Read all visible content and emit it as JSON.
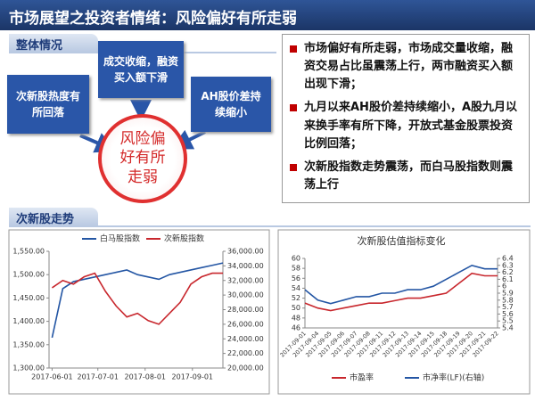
{
  "title": "市场展望之投资者情绪：风险偏好有所走弱",
  "overview": {
    "heading": "整体情况",
    "boxes": [
      "次新股热度有所回落",
      "成交收缩，融资买入额下滑",
      "AH股价差持续缩小"
    ],
    "center": "风险偏好有所走弱"
  },
  "bullets": [
    "市场偏好有所走弱，市场成交量收缩，融资交易占比虽震荡上行，两市融资买入额出现下滑；",
    "九月以来AH股价差持续缩小，A股九月以来换手率有所下降，开放式基金股票投资比例回落；",
    "次新股指数走势震荡，而白马股指数则震荡上行"
  ],
  "trend_heading": "次新股走势",
  "chart_data": [
    {
      "type": "line",
      "x": [
        "2017-06-01",
        "2017-06-08",
        "2017-06-15",
        "2017-06-22",
        "2017-06-29",
        "2017-07-06",
        "2017-07-13",
        "2017-07-20",
        "2017-07-27",
        "2017-08-03",
        "2017-08-10",
        "2017-08-17",
        "2017-08-24",
        "2017-08-31",
        "2017-09-07",
        "2017-09-14",
        "2017-09-21"
      ],
      "xlim": [
        "2017-05-30",
        "2017-09-21"
      ],
      "xticks": [
        "2017-06-01",
        "2017-07-01",
        "2017-08-01",
        "2017-09-01"
      ],
      "ylim": [
        1300,
        1550
      ],
      "yticks": [
        {
          "value": 1300,
          "label": "1,300.00"
        },
        {
          "value": 1350,
          "label": "1,350.00"
        },
        {
          "value": 1400,
          "label": "1,400.00"
        },
        {
          "value": 1450,
          "label": "1,450.00"
        },
        {
          "value": 1500,
          "label": "1,500.00"
        },
        {
          "value": 1550,
          "label": "1,550.00"
        }
      ],
      "y2lim": [
        20000,
        36000
      ],
      "y2ticks": [
        {
          "value": 20000,
          "label": "20,000.00"
        },
        {
          "value": 22000,
          "label": "22,000.00"
        },
        {
          "value": 24000,
          "label": "24,000.00"
        },
        {
          "value": 26000,
          "label": "26,000.00"
        },
        {
          "value": 28000,
          "label": "28,000.00"
        },
        {
          "value": 30000,
          "label": "30,000.00"
        },
        {
          "value": 32000,
          "label": "32,000.00"
        },
        {
          "value": 34000,
          "label": "34,000.00"
        },
        {
          "value": 36000,
          "label": "36,000.00"
        }
      ],
      "series": [
        {
          "name": "白马股指数",
          "color": "#2456a4",
          "values": [
            1365,
            1470,
            1485,
            1490,
            1495,
            1500,
            1505,
            1510,
            1500,
            1495,
            1490,
            1500,
            1505,
            1510,
            1515,
            1520,
            1525
          ]
        },
        {
          "name": "次新股指数",
          "color": "#c8272d",
          "axis": "y2",
          "values": [
            31000,
            32000,
            31500,
            32500,
            33000,
            30500,
            28500,
            27000,
            27500,
            26500,
            26000,
            27500,
            29000,
            31500,
            32500,
            33000,
            33000
          ]
        }
      ],
      "legend": "top"
    },
    {
      "type": "line",
      "title": "次新股估值指标变化",
      "categories": [
        "2017-09-01",
        "2017-09-04",
        "2017-09-05",
        "2017-09-06",
        "2017-09-07",
        "2017-09-08",
        "2017-09-11",
        "2017-09-12",
        "2017-09-13",
        "2017-09-14",
        "2017-09-15",
        "2017-09-18",
        "2017-09-19",
        "2017-09-20",
        "2017-09-21",
        "2017-09-22"
      ],
      "ylim": [
        46,
        60
      ],
      "yticks": [
        46,
        48,
        50,
        52,
        54,
        56,
        58,
        60
      ],
      "y2lim": [
        5.4,
        6.4
      ],
      "y2ticks": [
        5.4,
        5.5,
        5.6,
        5.7,
        5.8,
        5.9,
        6,
        6.1,
        6.2,
        6.3,
        6.4
      ],
      "series": [
        {
          "name": "市盈率",
          "color": "#c8272d",
          "values": [
            51,
            50,
            49.5,
            50,
            50.5,
            51,
            51,
            51.5,
            52,
            52,
            52.5,
            53,
            55,
            57,
            56.5,
            56.5
          ]
        },
        {
          "name": "市净率(LF)(右轴)",
          "color": "#2456a4",
          "axis": "y2",
          "values": [
            5.95,
            5.8,
            5.75,
            5.8,
            5.85,
            5.85,
            5.9,
            5.9,
            5.95,
            5.95,
            6.0,
            6.1,
            6.2,
            6.3,
            6.25,
            6.25
          ]
        }
      ],
      "legend": "bottom"
    }
  ]
}
